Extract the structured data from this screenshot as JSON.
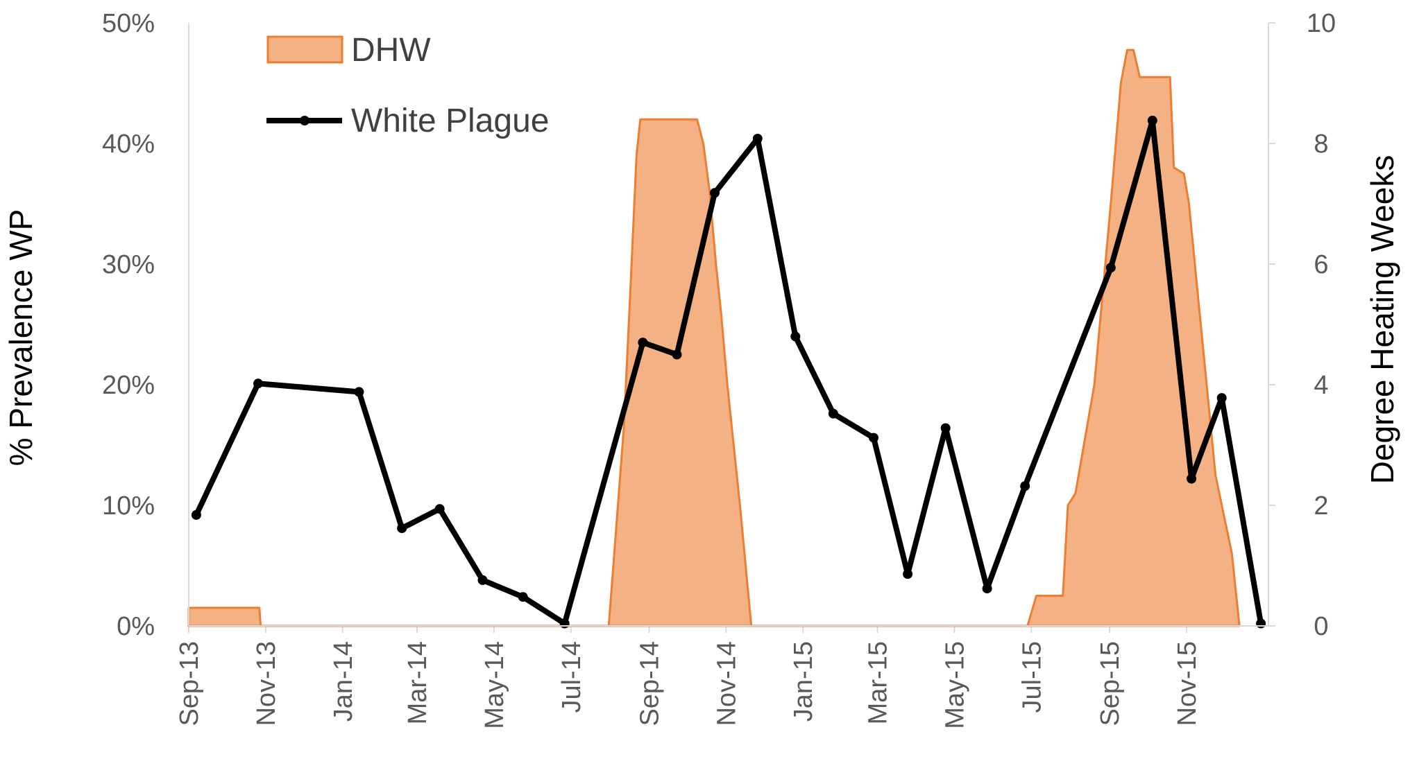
{
  "chart_data": {
    "type": "line",
    "x_tick_labels": [
      "Sep-13",
      "Nov-13",
      "Jan-14",
      "Mar-14",
      "May-14",
      "Jul-14",
      "Sep-14",
      "Nov-14",
      "Jan-15",
      "Mar-15",
      "May-15",
      "Jul-15",
      "Sep-15",
      "Nov-15"
    ],
    "ylabel_left": "%  Prevalence WP",
    "ylabel_right": "Degree Heating Weeks",
    "ylim_left": [
      0,
      50
    ],
    "ylim_right": [
      0,
      10
    ],
    "yticks_left": [
      "0%",
      "10%",
      "20%",
      "30%",
      "40%",
      "50%"
    ],
    "yticks_right": [
      "0",
      "2",
      "4",
      "6",
      "8",
      "10"
    ],
    "legend": {
      "placement": "top-left",
      "items": [
        "DHW",
        "White Plague"
      ]
    },
    "colors": {
      "dhw_fill": "#f4b183",
      "dhw_line": "#ed7d31",
      "line": "#000000",
      "tick_text": "#595959"
    },
    "series": [
      {
        "name": "DHW",
        "axis": "right",
        "kind": "area",
        "points": [
          [
            "2013-09-01",
            0.3
          ],
          [
            "2013-10-27",
            0.3
          ],
          [
            "2013-10-28",
            0
          ],
          [
            "2014-07-31",
            0
          ],
          [
            "2014-08-12",
            3.3
          ],
          [
            "2014-08-17",
            5.5
          ],
          [
            "2014-08-22",
            7.8
          ],
          [
            "2014-08-25",
            8.4
          ],
          [
            "2014-10-09",
            8.4
          ],
          [
            "2014-10-14",
            8.0
          ],
          [
            "2014-10-19",
            7.2
          ],
          [
            "2014-10-24",
            6.0
          ],
          [
            "2014-10-28",
            5.2
          ],
          [
            "2014-11-02",
            4.0
          ],
          [
            "2014-11-12",
            2.0
          ],
          [
            "2014-11-21",
            0
          ],
          [
            "2015-06-28",
            0
          ],
          [
            "2015-07-05",
            0.5
          ],
          [
            "2015-07-26",
            0.5
          ],
          [
            "2015-07-30",
            2.0
          ],
          [
            "2015-08-05",
            2.2
          ],
          [
            "2015-08-20",
            4.0
          ],
          [
            "2015-09-02",
            7.0
          ],
          [
            "2015-09-10",
            9.0
          ],
          [
            "2015-09-15",
            9.55
          ],
          [
            "2015-09-20",
            9.55
          ],
          [
            "2015-09-25",
            9.1
          ],
          [
            "2015-10-19",
            9.1
          ],
          [
            "2015-10-22",
            7.6
          ],
          [
            "2015-10-30",
            7.5
          ],
          [
            "2015-11-03",
            7.0
          ],
          [
            "2015-11-10",
            5.5
          ],
          [
            "2015-11-24",
            2.5
          ],
          [
            "2015-12-07",
            1.2
          ],
          [
            "2015-12-13",
            0
          ]
        ]
      },
      {
        "name": "White Plague",
        "axis": "left",
        "kind": "line",
        "points": [
          [
            "2013-09-07",
            9.2
          ],
          [
            "2013-10-26",
            20.1
          ],
          [
            "2014-01-14",
            19.4
          ],
          [
            "2014-02-17",
            8.1
          ],
          [
            "2014-03-19",
            9.7
          ],
          [
            "2014-04-22",
            3.8
          ],
          [
            "2014-05-24",
            2.4
          ],
          [
            "2014-06-26",
            0.2
          ],
          [
            "2014-08-27",
            23.5
          ],
          [
            "2014-09-23",
            22.5
          ],
          [
            "2014-10-23",
            35.9
          ],
          [
            "2014-11-26",
            40.4
          ],
          [
            "2014-12-26",
            24.0
          ],
          [
            "2015-01-25",
            17.6
          ],
          [
            "2015-02-26",
            15.6
          ],
          [
            "2015-03-25",
            4.3
          ],
          [
            "2015-04-24",
            16.4
          ],
          [
            "2015-05-27",
            3.1
          ],
          [
            "2015-06-26",
            11.6
          ],
          [
            "2015-09-02",
            29.7
          ],
          [
            "2015-10-05",
            41.9
          ],
          [
            "2015-11-05",
            12.2
          ],
          [
            "2015-11-29",
            18.9
          ],
          [
            "2015-12-30",
            0.2
          ]
        ]
      }
    ]
  }
}
